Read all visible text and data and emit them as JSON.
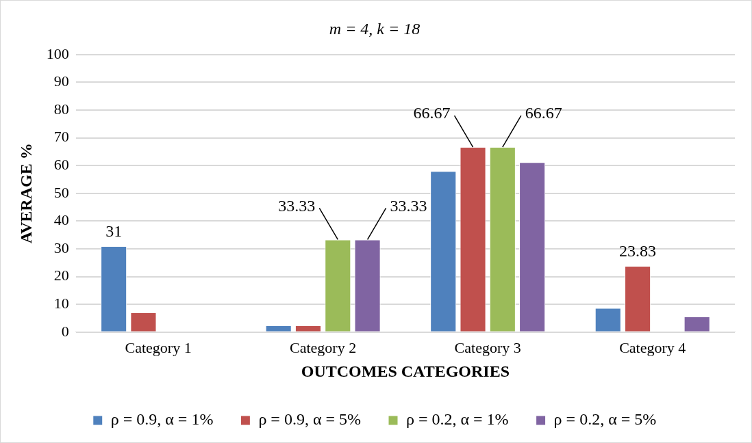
{
  "chart_data": {
    "type": "bar",
    "title": "m = 4, k = 18",
    "xlabel": "OUTCOMES CATEGORIES",
    "ylabel": "AVERAGE %",
    "categories": [
      "Category 1",
      "Category 2",
      "Category 3",
      "Category 4"
    ],
    "series": [
      {
        "name": "ρ = 0.9, α = 1%",
        "color": "#4f81bd",
        "values": [
          31,
          2.4,
          58,
          8.7
        ],
        "value_labels": [
          "31",
          null,
          null,
          null
        ]
      },
      {
        "name": "ρ = 0.9, α = 5%",
        "color": "#c0504d",
        "values": [
          7.1,
          2.4,
          66.67,
          23.83
        ],
        "value_labels": [
          null,
          null,
          "66.67",
          "23.83"
        ]
      },
      {
        "name": "ρ = 0.2, α = 1%",
        "color": "#9bbb59",
        "values": [
          0,
          33.33,
          66.67,
          0
        ],
        "value_labels": [
          null,
          "33.33",
          "66.67",
          null
        ]
      },
      {
        "name": "ρ = 0.2, α = 5%",
        "color": "#8064a2",
        "values": [
          0,
          33.33,
          61.2,
          5.6
        ],
        "value_labels": [
          null,
          "33.33",
          null,
          null
        ]
      }
    ],
    "ylim": [
      0,
      100
    ],
    "yticks": [
      0,
      10,
      20,
      30,
      40,
      50,
      60,
      70,
      80,
      90,
      100
    ],
    "grid": "y",
    "legend": "bottom"
  }
}
